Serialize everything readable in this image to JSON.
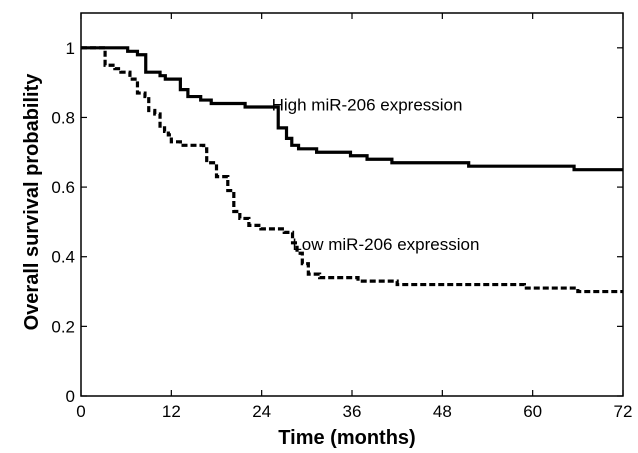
{
  "chart_data": {
    "type": "line",
    "subtype": "kaplan-meier step",
    "title": "",
    "xlabel": "Time (months)",
    "ylabel": "Overall survival probability",
    "xlim": [
      0,
      72
    ],
    "ylim": [
      0,
      1.1
    ],
    "xticks": [
      0,
      12,
      24,
      36,
      48,
      60,
      72
    ],
    "yticks": [
      0,
      0.2,
      0.4,
      0.6,
      0.8,
      1
    ],
    "xtick_labels": [
      "0",
      "12",
      "24",
      "36",
      "48",
      "60",
      "72"
    ],
    "ytick_labels": [
      "0",
      "0.2",
      "0.4",
      "0.6",
      "0.8",
      "1"
    ],
    "grid": false,
    "legend": "none (inline annotations)",
    "series": [
      {
        "name": "High miR-206 expression",
        "style": "solid",
        "color": "#000000",
        "x": [
          0,
          6.2,
          7.5,
          8.6,
          10.5,
          11.2,
          13.2,
          14.2,
          15.9,
          17.3,
          19.8,
          21.8,
          26.2,
          27.3,
          28.0,
          28.9,
          31.3,
          35.8,
          38.0,
          41.3,
          45.2,
          51.5,
          65.5,
          72
        ],
        "y": [
          1.0,
          0.99,
          0.98,
          0.93,
          0.92,
          0.91,
          0.88,
          0.86,
          0.85,
          0.84,
          0.84,
          0.83,
          0.77,
          0.74,
          0.72,
          0.71,
          0.7,
          0.69,
          0.68,
          0.67,
          0.67,
          0.66,
          0.65,
          0.65
        ]
      },
      {
        "name": "Low miR-206 expression",
        "style": "dashed",
        "color": "#000000",
        "x": [
          0,
          3.2,
          4.5,
          5.3,
          6.5,
          7.5,
          8.5,
          9.0,
          9.8,
          10.5,
          11.1,
          11.6,
          12.0,
          13.2,
          16.3,
          16.7,
          18.0,
          19.5,
          20.3,
          21.1,
          22.3,
          23.9,
          27.0,
          28.1,
          28.7,
          29.4,
          30.2,
          31.7,
          36.8,
          42.0,
          58.9,
          66.0,
          72
        ],
        "y": [
          1.0,
          0.95,
          0.94,
          0.93,
          0.91,
          0.87,
          0.86,
          0.82,
          0.81,
          0.77,
          0.76,
          0.75,
          0.73,
          0.72,
          0.71,
          0.67,
          0.63,
          0.59,
          0.53,
          0.51,
          0.49,
          0.48,
          0.47,
          0.44,
          0.41,
          0.38,
          0.35,
          0.34,
          0.33,
          0.32,
          0.31,
          0.3,
          0.3
        ]
      }
    ],
    "annotations": [
      {
        "text": "High miR-206 expression",
        "x": 38,
        "y": 0.82
      },
      {
        "text": "Low miR-206 expression",
        "x": 40.5,
        "y": 0.42
      }
    ]
  }
}
